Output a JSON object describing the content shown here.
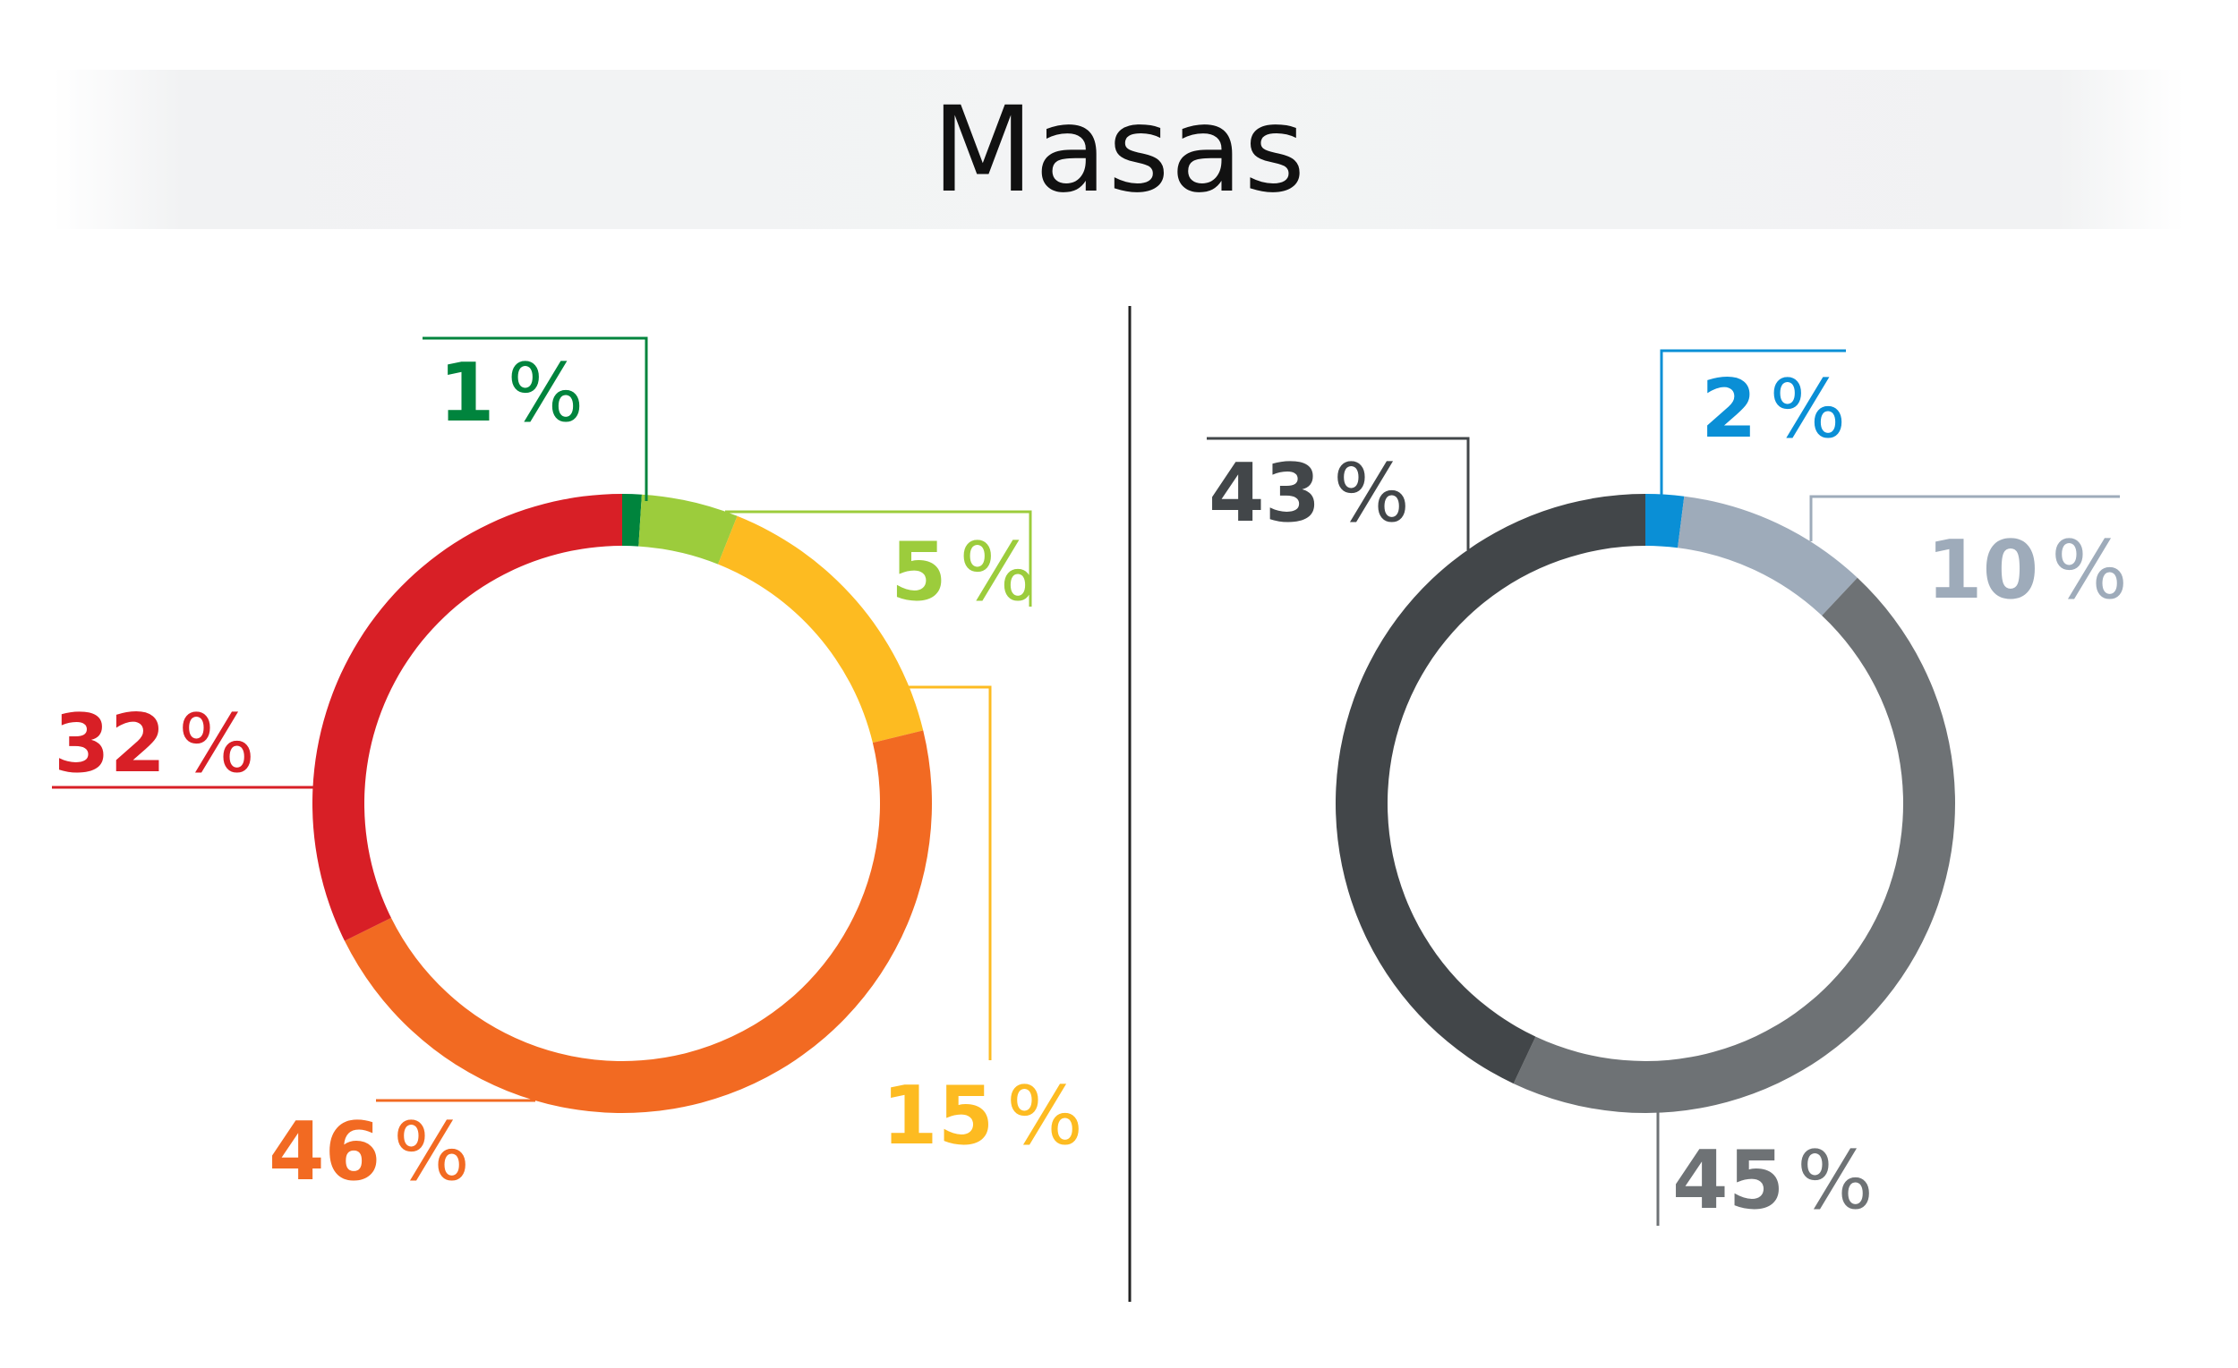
{
  "title": "Masas",
  "chart_data": [
    {
      "type": "pie",
      "style": "donut",
      "slices": [
        {
          "value": 1,
          "label": "1",
          "suffix": "%",
          "color": "#00843d"
        },
        {
          "value": 5,
          "label": "5",
          "suffix": "%",
          "color": "#9ccc3c"
        },
        {
          "value": 15,
          "label": "15",
          "suffix": "%",
          "color": "#fdbb21"
        },
        {
          "value": 46,
          "label": "46",
          "suffix": "%",
          "color": "#f26a22"
        },
        {
          "value": 32,
          "label": "32",
          "suffix": "%",
          "color": "#d81f26"
        }
      ]
    },
    {
      "type": "pie",
      "style": "donut",
      "slices": [
        {
          "value": 2,
          "label": "2",
          "suffix": "%",
          "color": "#0a8fd6"
        },
        {
          "value": 10,
          "label": "10",
          "suffix": "%",
          "color": "#9eabba"
        },
        {
          "value": 45,
          "label": "45",
          "suffix": "%",
          "color": "#6e7275"
        },
        {
          "value": 43,
          "label": "43",
          "suffix": "%",
          "color": "#424649"
        }
      ]
    }
  ]
}
